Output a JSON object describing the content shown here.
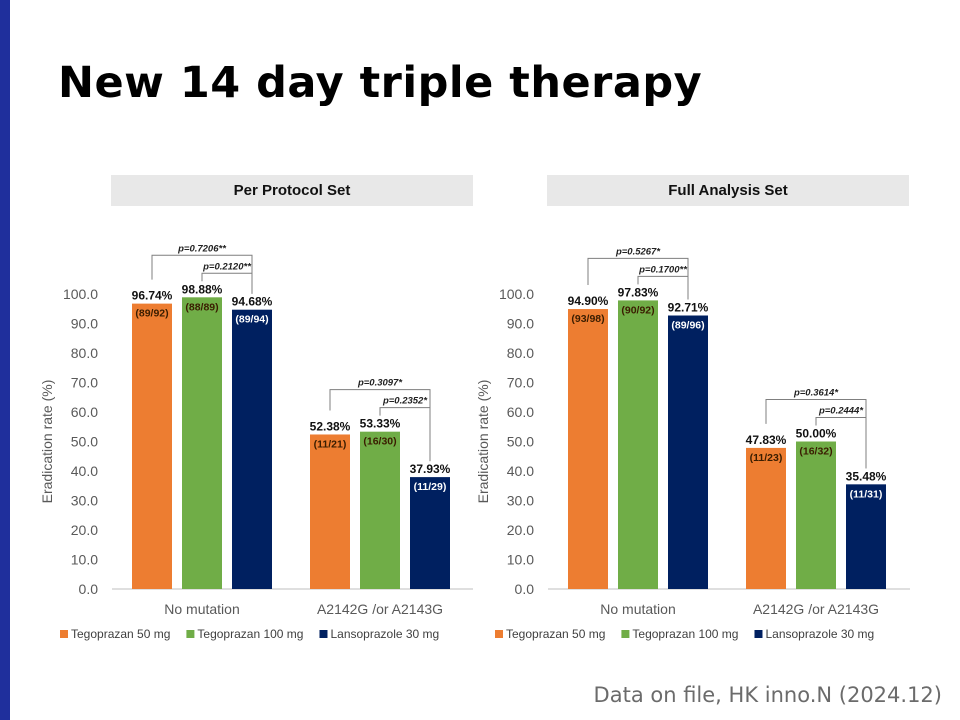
{
  "title": "New 14 day triple therapy",
  "footer": "Data on file, HK inno.N (2024.12)",
  "colors": {
    "tego50": "#ed7d31",
    "tego100": "#70ad47",
    "lanso30": "#002060",
    "accent_bar": "#1f2f9c"
  },
  "chart_data": [
    {
      "type": "bar",
      "title": "Per Protocol Set",
      "ylabel": "Eradication rate (%)",
      "ylim": [
        0,
        100
      ],
      "yticks": [
        "0.0",
        "10.0",
        "20.0",
        "30.0",
        "40.0",
        "50.0",
        "60.0",
        "70.0",
        "80.0",
        "90.0",
        "100.0"
      ],
      "categories": [
        "No mutation",
        "A2142G /or A2143G"
      ],
      "series": [
        {
          "name": "Tegoprazan 50 mg",
          "color": "#ed7d31",
          "values": [
            96.74,
            52.38
          ],
          "labels": [
            "96.74%",
            "52.38%"
          ],
          "counts": [
            "(89/92)",
            "(11/21)"
          ]
        },
        {
          "name": "Tegoprazan 100 mg",
          "color": "#70ad47",
          "values": [
            98.88,
            53.33
          ],
          "labels": [
            "98.88%",
            "53.33%"
          ],
          "counts": [
            "(88/89)",
            "(16/30)"
          ]
        },
        {
          "name": "Lansoprazole 30 mg",
          "color": "#002060",
          "values": [
            94.68,
            37.93
          ],
          "labels": [
            "94.68%",
            "37.93%"
          ],
          "counts": [
            "(89/94)",
            "(11/29)"
          ]
        }
      ],
      "comparisons": [
        {
          "category": 0,
          "from": 0,
          "to": 2,
          "label": "p=0.7206**"
        },
        {
          "category": 0,
          "from": 1,
          "to": 2,
          "label": "p=0.2120**"
        },
        {
          "category": 1,
          "from": 0,
          "to": 2,
          "label": "p=0.3097*"
        },
        {
          "category": 1,
          "from": 1,
          "to": 2,
          "label": "p=0.2352*"
        }
      ],
      "legend_position": "bottom"
    },
    {
      "type": "bar",
      "title": "Full Analysis Set",
      "ylabel": "Eradication rate (%)",
      "ylim": [
        0,
        100
      ],
      "yticks": [
        "0.0",
        "10.0",
        "20.0",
        "30.0",
        "40.0",
        "50.0",
        "60.0",
        "70.0",
        "80.0",
        "90.0",
        "100.0"
      ],
      "categories": [
        "No mutation",
        "A2142G /or A2143G"
      ],
      "series": [
        {
          "name": "Tegoprazan 50 mg",
          "color": "#ed7d31",
          "values": [
            94.9,
            47.83
          ],
          "labels": [
            "94.90%",
            "47.83%"
          ],
          "counts": [
            "(93/98)",
            "(11/23)"
          ]
        },
        {
          "name": "Tegoprazan 100 mg",
          "color": "#70ad47",
          "values": [
            97.83,
            50.0
          ],
          "labels": [
            "97.83%",
            "50.00%"
          ],
          "counts": [
            "(90/92)",
            "(16/32)"
          ]
        },
        {
          "name": "Lansoprazole 30 mg",
          "color": "#002060",
          "values": [
            92.71,
            35.48
          ],
          "labels": [
            "92.71%",
            "35.48%"
          ],
          "counts": [
            "(89/96)",
            "(11/31)"
          ]
        }
      ],
      "comparisons": [
        {
          "category": 0,
          "from": 0,
          "to": 2,
          "label": "p=0.5267*"
        },
        {
          "category": 0,
          "from": 1,
          "to": 2,
          "label": "p=0.1700**"
        },
        {
          "category": 1,
          "from": 0,
          "to": 2,
          "label": "p=0.3614*"
        },
        {
          "category": 1,
          "from": 1,
          "to": 2,
          "label": "p=0.2444*"
        }
      ],
      "legend_position": "bottom"
    }
  ]
}
